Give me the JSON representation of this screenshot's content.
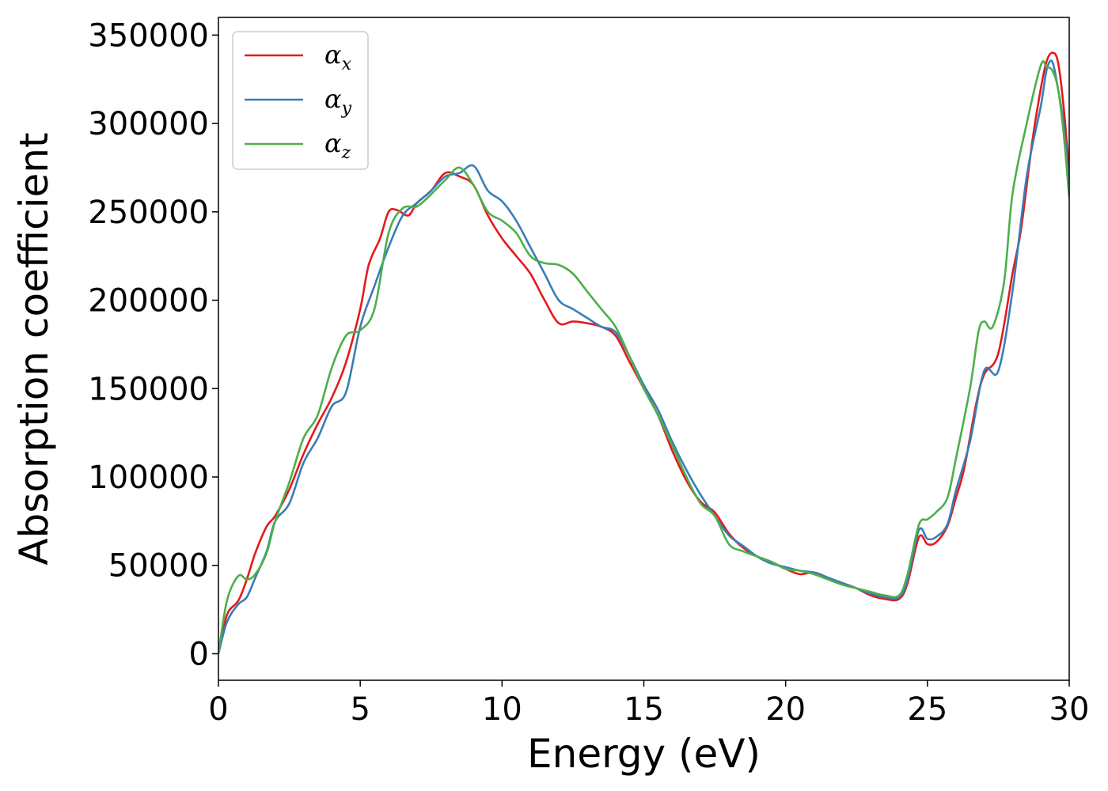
{
  "chart_data": {
    "type": "line",
    "title": "",
    "xlabel": "Energy (eV)",
    "ylabel": "Absorption coefficient",
    "xlim": [
      0,
      30
    ],
    "ylim": [
      -15000,
      360000
    ],
    "xticks": [
      0,
      5,
      10,
      15,
      20,
      25,
      30
    ],
    "yticks": [
      0,
      50000,
      100000,
      150000,
      200000,
      250000,
      300000,
      350000
    ],
    "grid": false,
    "legend_position": "top-left",
    "series": [
      {
        "name": "α",
        "subscript": "x",
        "color": "#e41a1c",
        "x": [
          0,
          0.3,
          0.7,
          1.0,
          1.3,
          1.7,
          2.0,
          2.5,
          3.0,
          3.5,
          4.0,
          4.5,
          5.0,
          5.3,
          5.7,
          6.0,
          6.3,
          6.7,
          7.0,
          7.5,
          8.0,
          8.5,
          9.0,
          9.5,
          10.0,
          10.5,
          11.0,
          11.5,
          12.0,
          12.5,
          13.0,
          13.5,
          14.0,
          14.5,
          15.0,
          15.5,
          16.0,
          16.5,
          17.0,
          17.5,
          18.0,
          18.5,
          19.0,
          19.5,
          20.0,
          20.5,
          21.0,
          21.5,
          22.0,
          22.5,
          23.0,
          23.5,
          24.0,
          24.3,
          24.7,
          25.0,
          25.3,
          25.7,
          26.0,
          26.3,
          26.7,
          27.0,
          27.5,
          28.0,
          28.3,
          28.7,
          29.0,
          29.2,
          29.4,
          29.6,
          29.8,
          30.0
        ],
        "y": [
          0,
          22000,
          30000,
          42000,
          57000,
          72000,
          78000,
          93000,
          113000,
          130000,
          145000,
          165000,
          195000,
          220000,
          235000,
          250000,
          251000,
          248000,
          255000,
          262000,
          272000,
          270000,
          265000,
          248000,
          235000,
          225000,
          215000,
          200000,
          187000,
          188000,
          187000,
          185000,
          180000,
          165000,
          150000,
          135000,
          115000,
          98000,
          86000,
          80000,
          68000,
          60000,
          55000,
          52000,
          48000,
          45000,
          46000,
          43000,
          40000,
          37000,
          33000,
          31000,
          31000,
          40000,
          66000,
          62000,
          63000,
          72000,
          88000,
          105000,
          140000,
          158000,
          170000,
          215000,
          240000,
          290000,
          320000,
          335000,
          340000,
          335000,
          310000,
          272000
        ]
      },
      {
        "name": "α",
        "subscript": "y",
        "color": "#377eb8",
        "x": [
          0,
          0.3,
          0.7,
          1.0,
          1.3,
          1.7,
          2.0,
          2.5,
          3.0,
          3.5,
          4.0,
          4.5,
          5.0,
          5.5,
          6.0,
          6.5,
          7.0,
          7.5,
          8.0,
          8.5,
          9.0,
          9.5,
          10.0,
          10.5,
          11.0,
          11.5,
          12.0,
          12.5,
          13.0,
          13.5,
          14.0,
          14.5,
          15.0,
          15.5,
          16.0,
          16.5,
          17.0,
          17.5,
          18.0,
          18.5,
          19.0,
          19.5,
          20.0,
          20.5,
          21.0,
          21.5,
          22.0,
          22.5,
          23.0,
          23.5,
          24.0,
          24.3,
          24.7,
          25.0,
          25.3,
          25.7,
          26.0,
          26.5,
          27.0,
          27.5,
          28.0,
          28.5,
          29.0,
          29.2,
          29.4,
          29.6,
          29.8,
          30.0
        ],
        "y": [
          0,
          18000,
          28000,
          32000,
          43000,
          58000,
          75000,
          85000,
          108000,
          122000,
          140000,
          148000,
          185000,
          208000,
          230000,
          248000,
          255000,
          262000,
          270000,
          272000,
          276000,
          262000,
          256000,
          245000,
          230000,
          215000,
          200000,
          195000,
          190000,
          185000,
          182000,
          168000,
          152000,
          138000,
          120000,
          104000,
          90000,
          78000,
          67000,
          61000,
          55000,
          51000,
          49000,
          47000,
          46000,
          43000,
          40000,
          37000,
          34000,
          32000,
          32000,
          42000,
          70000,
          65000,
          66000,
          73000,
          92000,
          120000,
          160000,
          160000,
          205000,
          270000,
          310000,
          330000,
          335000,
          320000,
          300000,
          265000
        ]
      },
      {
        "name": "α",
        "subscript": "z",
        "color": "#4daf4a",
        "x": [
          0,
          0.3,
          0.7,
          1.0,
          1.3,
          1.7,
          2.0,
          2.5,
          3.0,
          3.5,
          4.0,
          4.5,
          5.0,
          5.5,
          6.0,
          6.5,
          7.0,
          7.5,
          8.0,
          8.5,
          9.0,
          9.5,
          10.0,
          10.5,
          11.0,
          11.5,
          12.0,
          12.5,
          13.0,
          13.5,
          14.0,
          14.5,
          15.0,
          15.5,
          16.0,
          16.5,
          17.0,
          17.5,
          18.0,
          18.5,
          19.0,
          19.5,
          20.0,
          20.5,
          21.0,
          21.5,
          22.0,
          22.5,
          23.0,
          23.5,
          24.0,
          24.3,
          24.7,
          25.0,
          25.3,
          25.7,
          26.0,
          26.5,
          26.8,
          27.0,
          27.3,
          27.7,
          28.0,
          28.5,
          29.0,
          29.2,
          29.4,
          29.6,
          29.8,
          30.0
        ],
        "y": [
          0,
          30000,
          44000,
          42000,
          45000,
          57000,
          75000,
          97000,
          122000,
          135000,
          162000,
          180000,
          183000,
          195000,
          238000,
          252000,
          253000,
          260000,
          268000,
          275000,
          265000,
          250000,
          245000,
          238000,
          225000,
          221000,
          220000,
          215000,
          205000,
          195000,
          185000,
          168000,
          150000,
          135000,
          118000,
          100000,
          85000,
          78000,
          62000,
          58000,
          55000,
          52000,
          48000,
          47000,
          45000,
          42000,
          39000,
          37000,
          35000,
          33000,
          33000,
          45000,
          73000,
          76000,
          80000,
          88000,
          110000,
          150000,
          182000,
          188000,
          185000,
          210000,
          260000,
          300000,
          333000,
          332000,
          330000,
          320000,
          295000,
          258000
        ]
      }
    ]
  }
}
